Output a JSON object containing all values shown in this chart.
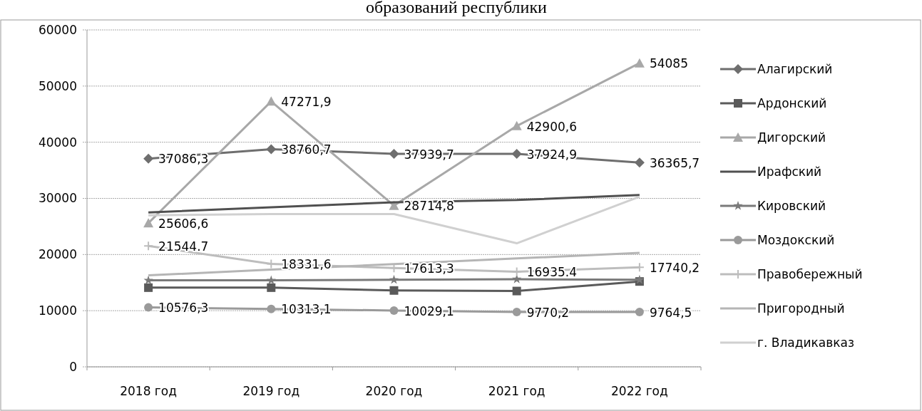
{
  "chart_data": {
    "type": "line",
    "title": "образований республики",
    "categories": [
      "2018 год",
      "2019 год",
      "2020 год",
      "2021 год",
      "2022 год"
    ],
    "ylim": [
      0,
      60000
    ],
    "yticks": [
      0,
      10000,
      20000,
      30000,
      40000,
      50000,
      60000
    ],
    "grid": "y",
    "legend": "right",
    "series": [
      {
        "name": "Алагирский",
        "color": "#6e6e6e",
        "marker": "diamond",
        "values": [
          37086.3,
          38760.7,
          37939.7,
          37924.9,
          36365.7
        ],
        "value_labels": [
          "37086,3",
          "38760,7",
          "37939,7",
          "37924,9",
          "36365,7"
        ]
      },
      {
        "name": "Ардонский",
        "color": "#5a5a5a",
        "marker": "square",
        "values": [
          14100,
          14100,
          13600,
          13500,
          15200
        ]
      },
      {
        "name": "Дигорский",
        "color": "#a8a8a8",
        "marker": "triangle",
        "values": [
          25606.6,
          47271.9,
          28714.8,
          42900.6,
          54085
        ],
        "value_labels": [
          "25606,6",
          "47271,9",
          "28714,8",
          "42900,6",
          "54085"
        ]
      },
      {
        "name": "Ирафский",
        "color": "#505050",
        "marker": "none",
        "values": [
          27500,
          28400,
          29300,
          29700,
          30600
        ]
      },
      {
        "name": "Кировский",
        "color": "#7a7a7a",
        "marker": "star",
        "values": [
          15400,
          15400,
          15500,
          15600,
          15500
        ]
      },
      {
        "name": "Моздокский",
        "color": "#9a9a9a",
        "marker": "circle",
        "values": [
          10576.3,
          10313.1,
          10029.1,
          9770.2,
          9764.5
        ],
        "value_labels": [
          "10576,3",
          "10313,1",
          "10029,1",
          "9770,2",
          "9764,5"
        ]
      },
      {
        "name": "Правобережный",
        "color": "#bdbdbd",
        "marker": "cross",
        "values": [
          21544.7,
          18331.6,
          17613.3,
          16935.4,
          17740.2
        ],
        "value_labels": [
          "21544.7",
          "18331,6",
          "17613,3",
          "16935.4",
          "17740,2"
        ]
      },
      {
        "name": "Пригородный",
        "color": "#b5b5b5",
        "marker": "none",
        "values": [
          16300,
          17300,
          18300,
          19300,
          20300
        ]
      },
      {
        "name": "г. Владикавказ",
        "color": "#d0d0d0",
        "marker": "none",
        "values": [
          27000,
          27200,
          27200,
          22000,
          30300
        ]
      }
    ]
  }
}
